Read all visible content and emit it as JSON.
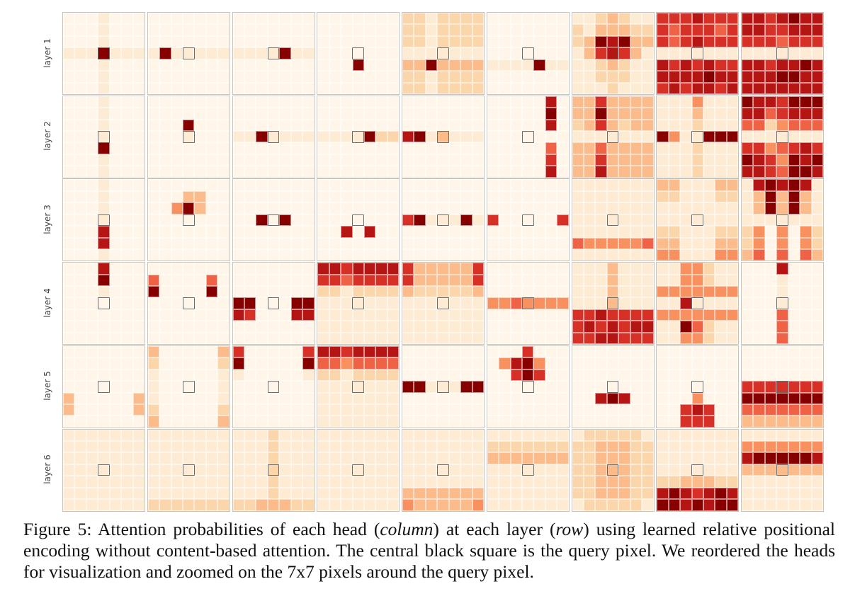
{
  "figure": {
    "row_labels": [
      "layer 1",
      "layer 2",
      "layer 3",
      "layer 4",
      "layer 5",
      "layer 6"
    ],
    "grid_size": 7,
    "query_cell": [
      3,
      3
    ],
    "colors": {
      "0": "#fff6e9",
      "1": "#fdecd3",
      "2": "#fcd6ab",
      "3": "#fcbb8a",
      "4": "#f8915f",
      "5": "#ef6245",
      "6": "#d73027",
      "7": "#b51614",
      "8": "#870000"
    },
    "heads": [
      [
        [
          "0001000",
          "0001000",
          "0001000",
          "1118111",
          "0001000",
          "0001000",
          "0001000"
        ],
        [
          "0000000",
          "0000000",
          "0000000",
          "1811111",
          "0000000",
          "0000000",
          "0000000"
        ],
        [
          "0000000",
          "0000000",
          "0000000",
          "1111811",
          "0000000",
          "0000000",
          "0000000"
        ],
        [
          "0000000",
          "0000000",
          "0000000",
          "0000000",
          "0008000",
          "0000000",
          "0000000"
        ],
        [
          "2212222",
          "2212222",
          "2212222",
          "1111111",
          "3383333",
          "2212222",
          "2212222"
        ],
        [
          "0000000",
          "0000000",
          "0000000",
          "0000000",
          "1111811",
          "0000000",
          "0000000"
        ],
        [
          "1123211",
          "2133322",
          "2387833",
          "1367631",
          "1123211",
          "1122211",
          "1112111"
        ],
        [
          "6667666",
          "6566656",
          "6567666",
          "1111111",
          "7676766",
          "7777877",
          "6767767"
        ],
        [
          "7767877",
          "7766777",
          "6665666",
          "1111111",
          "7767787",
          "7778877",
          "7777777"
        ]
      ],
      [
        [
          "0001000",
          "0001000",
          "0001000",
          "0001000",
          "0008000",
          "0001000",
          "0001000"
        ],
        [
          "0000000",
          "0000000",
          "0008000",
          "0001000",
          "0000000",
          "0000000",
          "0000000"
        ],
        [
          "0000000",
          "0000000",
          "0000000",
          "1181111",
          "0000000",
          "0000000",
          "0000000"
        ],
        [
          "0000000",
          "0000000",
          "0000000",
          "1111822",
          "0000000",
          "0000000",
          "0000000"
        ],
        [
          "0000000",
          "0000000",
          "0000000",
          "7813111",
          "0000000",
          "0000000",
          "0000000"
        ],
        [
          "0000070",
          "0000080",
          "0000070",
          "0000000",
          "0000050",
          "0000060",
          "0000070"
        ],
        [
          "3363333",
          "3383333",
          "2363233",
          "1111111",
          "3353333",
          "3363333",
          "3373333"
        ],
        [
          "1114111",
          "1113111",
          "1112111",
          "8411888",
          "1112111",
          "1112111",
          "1112111"
        ],
        [
          "8776888",
          "7756777",
          "5524555",
          "1111111",
          "6645676",
          "8764878",
          "7765887"
        ]
      ],
      [
        [
          "0001000",
          "0001000",
          "0001000",
          "0001000",
          "0007000",
          "0007000",
          "0001000"
        ],
        [
          "0000000",
          "0003300",
          "0048300",
          "0000000",
          "0000000",
          "0000000",
          "0000000"
        ],
        [
          "0000000",
          "0000000",
          "0000000",
          "0080800",
          "0000000",
          "0000000",
          "0000000"
        ],
        [
          "0000000",
          "0000000",
          "0000000",
          "0000000",
          "0070700",
          "0000000",
          "0000000"
        ],
        [
          "0000000",
          "0000000",
          "0000000",
          "6811181",
          "0000000",
          "0000000",
          "0000000"
        ],
        [
          "0000000",
          "0000000",
          "0000000",
          "6000006",
          "0000000",
          "0000000",
          "0000000"
        ],
        [
          "1111111",
          "1111111",
          "1111111",
          "1111111",
          "1111111",
          "5444445",
          "1111111"
        ],
        [
          "3311133",
          "2211122",
          "1111111",
          "1111111",
          "2211122",
          "3311133",
          "4411144"
        ],
        [
          "1787871",
          "1383831",
          "1383831",
          "1111111",
          "2494942",
          "2494942",
          "3595953"
        ]
      ],
      [
        [
          "0007000",
          "0008000",
          "0001000",
          "0000000",
          "0000000",
          "0000000",
          "0000000"
        ],
        [
          "0000000",
          "5000050",
          "8000080",
          "0000000",
          "0000000",
          "0000000",
          "0000000"
        ],
        [
          "0000000",
          "0000000",
          "0000000",
          "8800088",
          "7600077",
          "0000000",
          "0000000"
        ],
        [
          "7767777",
          "6656666",
          "2212222",
          "1111111",
          "1111111",
          "1111111",
          "1111111"
        ],
        [
          "6333336",
          "6333336",
          "3222223",
          "1111111",
          "1111111",
          "1111111",
          "1111111"
        ],
        [
          "0000000",
          "0000000",
          "0000000",
          "4454444",
          "0000000",
          "0000000",
          "0000000"
        ],
        [
          "1113111",
          "1113111",
          "1113111",
          "1113111",
          "6676666",
          "6767677",
          "6677666"
        ],
        [
          "1144211",
          "1144211",
          "4444444",
          "1171111",
          "4444444",
          "1185211",
          "1144211"
        ],
        [
          "0007000",
          "0001000",
          "0001000",
          "0001000",
          "0005000",
          "0005000",
          "0005000"
        ]
      ],
      [
        [
          "0000000",
          "0000000",
          "0000000",
          "0000000",
          "3000003",
          "3000003",
          "0000000"
        ],
        [
          "3000003",
          "2000002",
          "1000001",
          "1000001",
          "1000001",
          "2000002",
          "3000003"
        ],
        [
          "6000006",
          "8000008",
          "1000001",
          "0000000",
          "0000000",
          "0000000",
          "0000000"
        ],
        [
          "7767777",
          "5545555",
          "2212222",
          "1111111",
          "1111111",
          "1111111",
          "1111111"
        ],
        [
          "0000000",
          "0000000",
          "0000000",
          "8811188",
          "0000000",
          "0000000",
          "0000000"
        ],
        [
          "0006000",
          "0478400",
          "0068600",
          "0000000",
          "0000000",
          "0000000",
          "0000000"
        ],
        [
          "0000000",
          "0000000",
          "0000000",
          "0000000",
          "0078700",
          "0000000",
          "0000000"
        ],
        [
          "0000000",
          "0000000",
          "0000000",
          "0000000",
          "0004000",
          "0067600",
          "0066600"
        ],
        [
          "0000000",
          "0000000",
          "0000000",
          "6666666",
          "8888888",
          "5555555",
          "3333333"
        ]
      ],
      [
        [
          "1111111",
          "1111111",
          "1111111",
          "1111111",
          "1111111",
          "1111111",
          "1111111"
        ],
        [
          "1111111",
          "1111111",
          "1111111",
          "1111111",
          "1111111",
          "1111111",
          "2222222"
        ],
        [
          "1112111",
          "1112111",
          "1112111",
          "1112111",
          "1112111",
          "1112111",
          "2233322"
        ],
        [
          "1111111",
          "1111111",
          "1111111",
          "1111111",
          "1111111",
          "1111111",
          "1111111"
        ],
        [
          "1111111",
          "1111111",
          "1111111",
          "1111111",
          "1111111",
          "3333333",
          "4333334"
        ],
        [
          "1111111",
          "2222222",
          "3333333",
          "1111111",
          "1111111",
          "1111111",
          "1111111"
        ],
        [
          "1222221",
          "2233322",
          "2233322",
          "2233322",
          "2233322",
          "2233322",
          "1222221"
        ],
        [
          "1111111",
          "1111111",
          "1111111",
          "1111111",
          "2233322",
          "7876787",
          "8878788"
        ],
        [
          "1111111",
          "4444444",
          "7888887",
          "3333333",
          "1111111",
          "1111111",
          "1111111"
        ]
      ]
    ]
  },
  "caption": {
    "label": "Figure 5:",
    "parts": [
      "Attention probabilities of each head (",
      "column",
      ") at each layer (",
      "row",
      ") using learned relative positional encoding without content-based attention. The central black square is the query pixel. We reordered the heads for visualization and zoomed on the 7x7 pixels around the query pixel."
    ]
  }
}
